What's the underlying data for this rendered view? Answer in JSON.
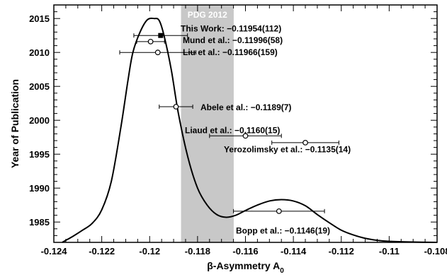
{
  "chart_data": {
    "type": "scatter",
    "xlabel": "β-Asymmetry A",
    "xlabel_subscript": "0",
    "ylabel": "Year of Publication",
    "xlim": [
      -0.124,
      -0.108
    ],
    "ylim": [
      1982,
      2017
    ],
    "x_ticks": [
      -0.124,
      -0.122,
      -0.12,
      -0.118,
      -0.116,
      -0.114,
      -0.112,
      -0.11,
      -0.108
    ],
    "x_tick_labels": [
      "-0.124",
      "-0.122",
      "-0.12",
      "-0.118",
      "-0.116",
      "-0.114",
      "-0.112",
      "-0.11",
      "-0.108"
    ],
    "y_ticks": [
      1985,
      1990,
      1995,
      2000,
      2005,
      2010,
      2015
    ],
    "y_tick_labels": [
      "1985",
      "1990",
      "1995",
      "2000",
      "2005",
      "2010",
      "2015"
    ],
    "band": {
      "label": "PDG 2012",
      "xmin": -0.11869,
      "xmax": -0.11649,
      "color": "#c8c8c8"
    },
    "points": [
      {
        "label": "This Work: −0.11954(112)",
        "x": -0.11954,
        "err": 0.00112,
        "year": 2012.5,
        "filled": true
      },
      {
        "label": "Mund et al.: −0.11996(58)",
        "x": -0.11996,
        "err": 0.00058,
        "year": 2011.6,
        "filled": false
      },
      {
        "label": "Liu et al.: −0.11966(159)",
        "x": -0.11966,
        "err": 0.00159,
        "year": 2010.0,
        "filled": false
      },
      {
        "label": "Abele et al.: −0.1189(7)",
        "x": -0.1189,
        "err": 0.0007,
        "year": 2002.0,
        "filled": false
      },
      {
        "label": "Liaud et al.: −0.1160(15)",
        "x": -0.116,
        "err": 0.0015,
        "year": 1997.7,
        "filled": false
      },
      {
        "label": "Yerozolimsky et al.: −0.1135(14)",
        "x": -0.1135,
        "err": 0.0014,
        "year": 1996.7,
        "filled": false
      },
      {
        "label": "Bopp et al.: −0.1146(19)",
        "x": -0.1146,
        "err": 0.0019,
        "year": 1986.6,
        "filled": false
      }
    ],
    "curve": [
      [
        -0.12365,
        1982.0
      ],
      [
        -0.1235,
        1982.3
      ],
      [
        -0.1232,
        1982.9
      ],
      [
        -0.1228,
        1983.8
      ],
      [
        -0.1224,
        1984.8
      ],
      [
        -0.122,
        1986.8
      ],
      [
        -0.1216,
        1991.0
      ],
      [
        -0.1212,
        1999.0
      ],
      [
        -0.1209,
        2006.0
      ],
      [
        -0.1207,
        2010.0
      ],
      [
        -0.1204,
        2013.0
      ],
      [
        -0.1201,
        2014.8
      ],
      [
        -0.1198,
        2015.0
      ],
      [
        -0.1196,
        2014.7
      ],
      [
        -0.1194,
        2012.5
      ],
      [
        -0.1191,
        2007.5
      ],
      [
        -0.1188,
        2001.0
      ],
      [
        -0.1184,
        1994.5
      ],
      [
        -0.118,
        1990.0
      ],
      [
        -0.1176,
        1987.5
      ],
      [
        -0.1172,
        1986.1
      ],
      [
        -0.1168,
        1985.7
      ],
      [
        -0.1164,
        1986.0
      ],
      [
        -0.116,
        1986.7
      ],
      [
        -0.1155,
        1987.5
      ],
      [
        -0.115,
        1988.1
      ],
      [
        -0.1145,
        1988.3
      ],
      [
        -0.114,
        1988.1
      ],
      [
        -0.1135,
        1987.4
      ],
      [
        -0.113,
        1986.1
      ],
      [
        -0.1125,
        1984.9
      ],
      [
        -0.112,
        1983.8
      ],
      [
        -0.1115,
        1983.1
      ],
      [
        -0.111,
        1982.6
      ],
      [
        -0.1105,
        1982.3
      ],
      [
        -0.11,
        1982.15
      ],
      [
        -0.109,
        1982.05
      ],
      [
        -0.108,
        1982.0
      ]
    ]
  }
}
